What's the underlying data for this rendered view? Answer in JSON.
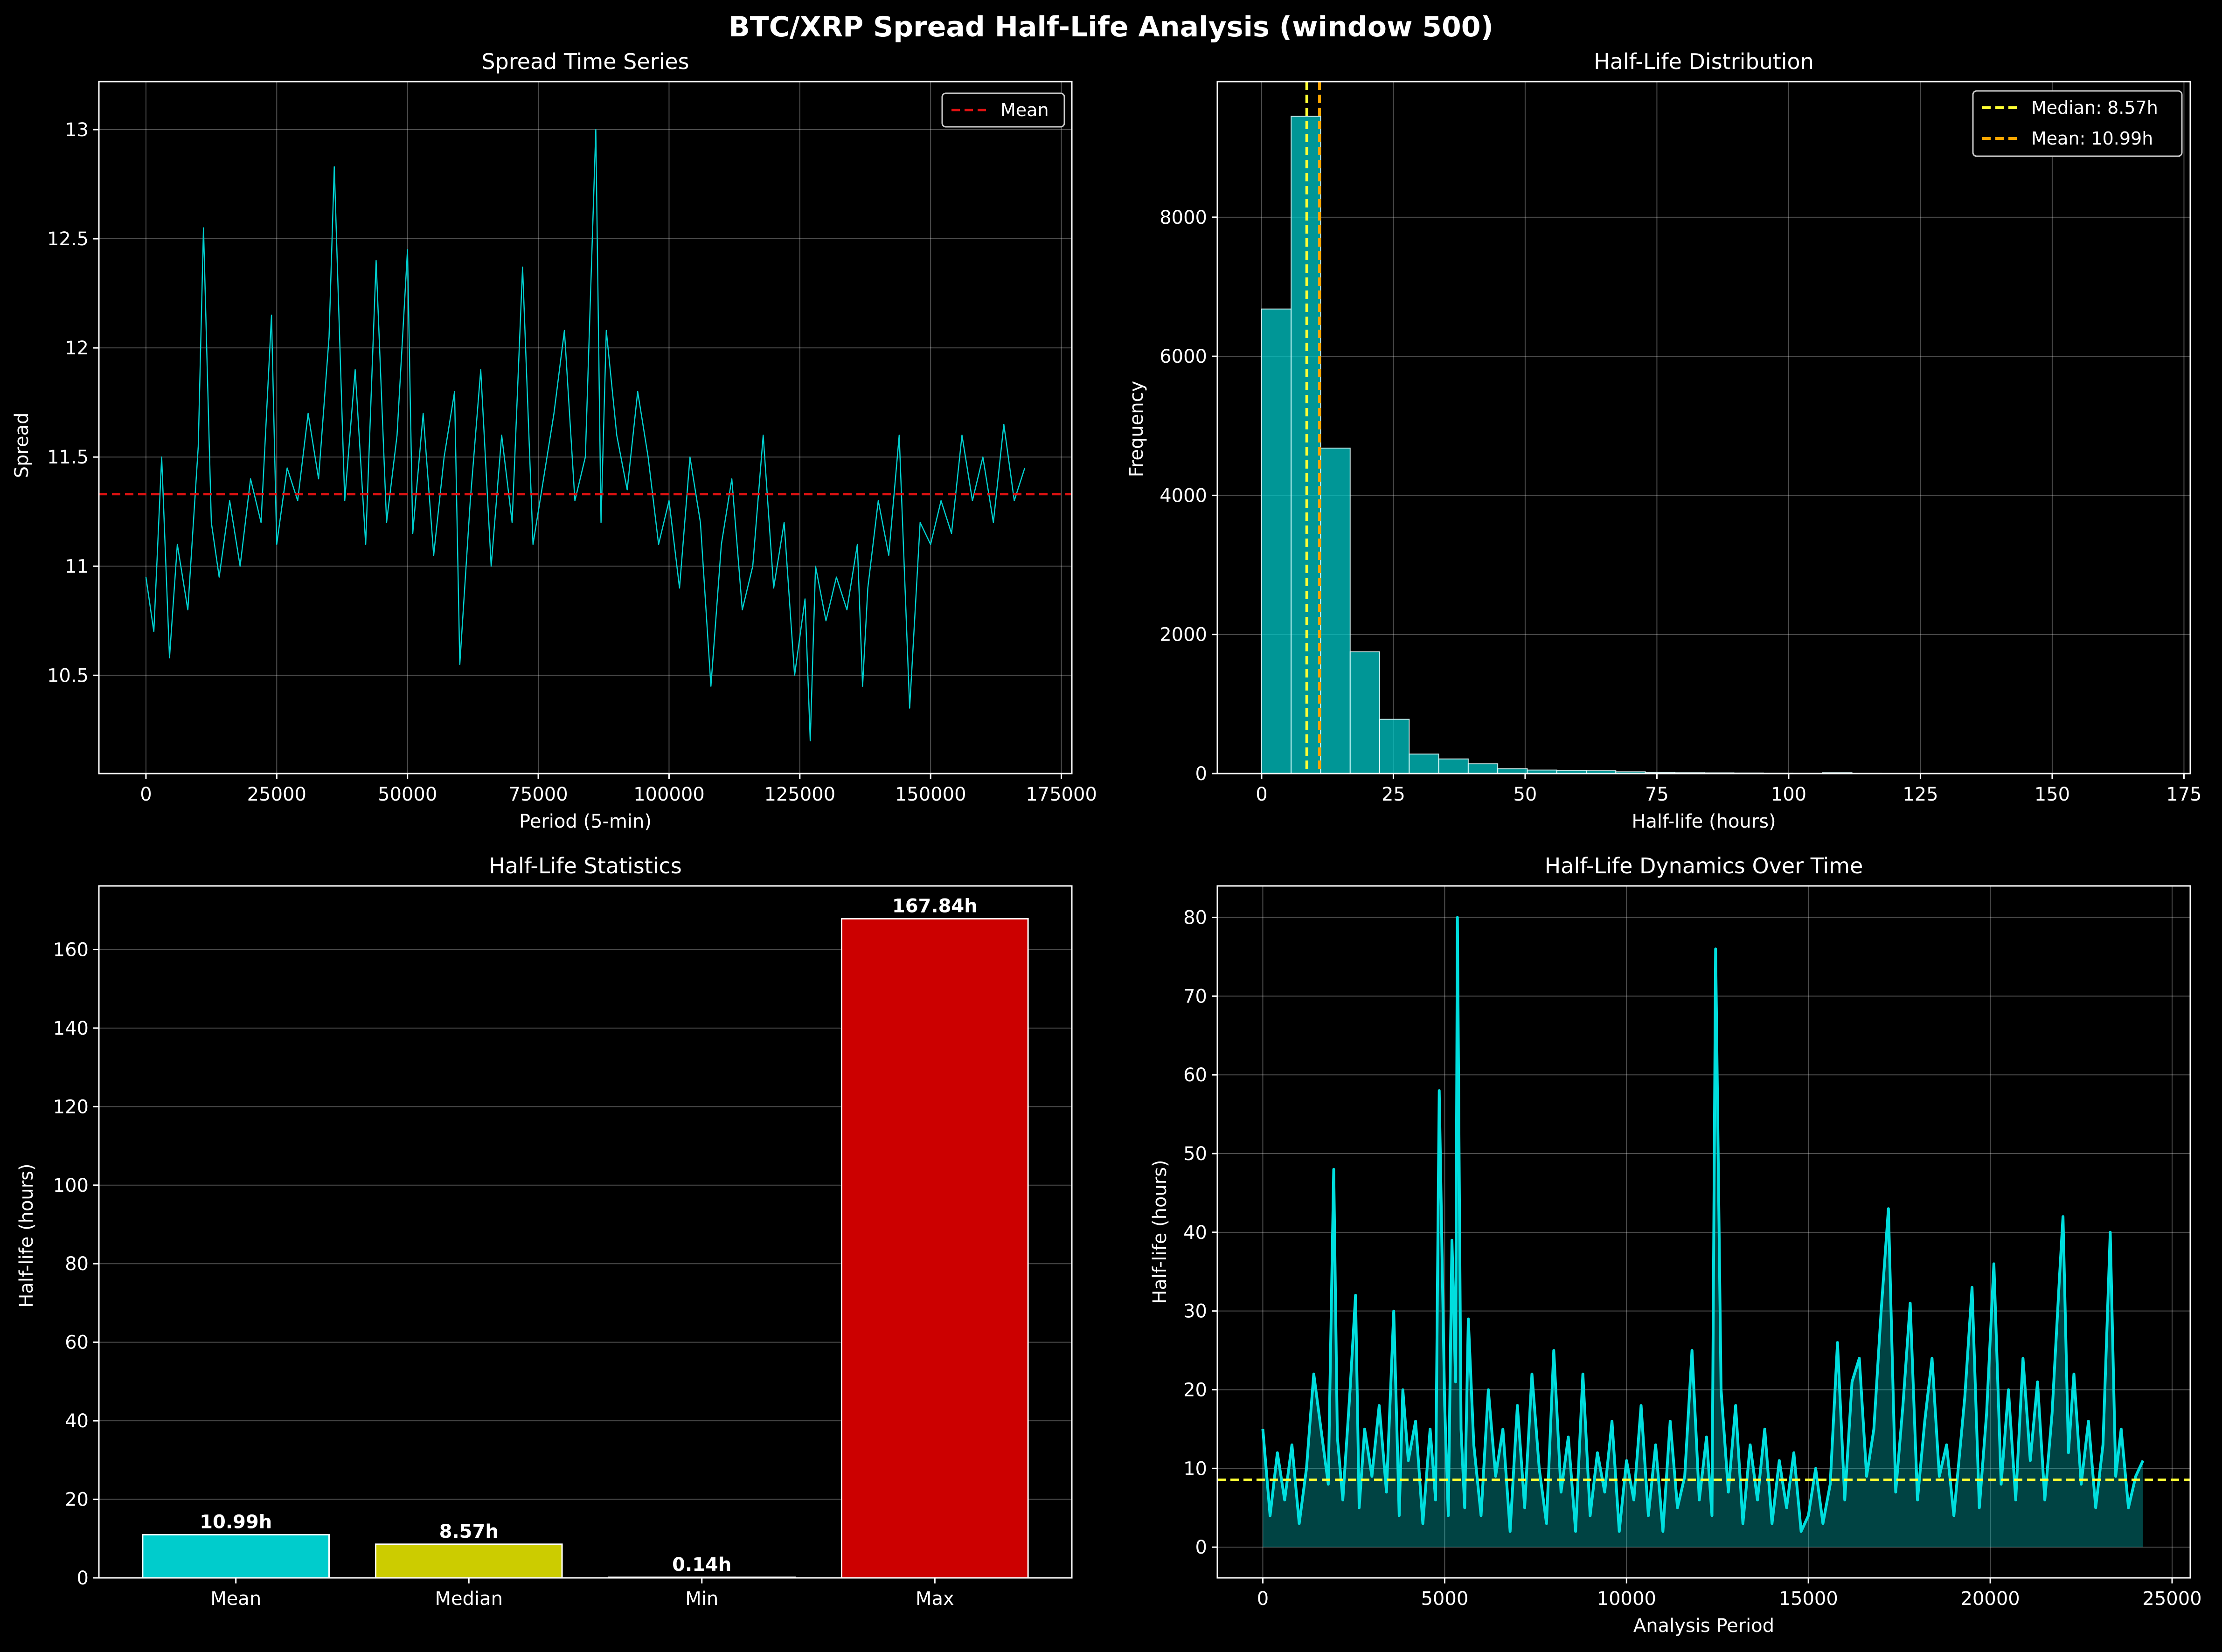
{
  "figure": {
    "title": "BTC/XRP Spread Half-Life Analysis (window 500)"
  },
  "chart_data": [
    {
      "id": "spread",
      "type": "line",
      "title": "Spread Time Series",
      "xlabel": "Period (5-min)",
      "ylabel": "Spread",
      "xlim": [
        -9000,
        177000
      ],
      "ylim": [
        10.05,
        13.22
      ],
      "xticks": [
        0,
        25000,
        50000,
        75000,
        100000,
        125000,
        150000,
        175000
      ],
      "yticks": [
        10.5,
        11.0,
        11.5,
        12.0,
        12.5,
        13.0
      ],
      "x_range": [
        0,
        168000
      ],
      "mean": 11.33,
      "grid": true,
      "legend": {
        "position": "top-right",
        "entries": [
          "Mean"
        ]
      },
      "series": [
        {
          "name": "Spread",
          "color": "#00d0d0",
          "x": [
            0,
            1500,
            3000,
            4500,
            6000,
            8000,
            10000,
            11000,
            12500,
            14000,
            16000,
            18000,
            20000,
            22000,
            24000,
            25000,
            27000,
            29000,
            31000,
            33000,
            35000,
            36000,
            38000,
            40000,
            42000,
            44000,
            46000,
            48000,
            50000,
            51000,
            53000,
            55000,
            57000,
            59000,
            60000,
            62000,
            64000,
            66000,
            68000,
            70000,
            72000,
            74000,
            76000,
            78000,
            80000,
            82000,
            84000,
            86000,
            87000,
            88000,
            90000,
            92000,
            94000,
            96000,
            98000,
            100000,
            102000,
            104000,
            106000,
            108000,
            110000,
            112000,
            114000,
            116000,
            118000,
            120000,
            122000,
            124000,
            126000,
            127000,
            128000,
            130000,
            132000,
            134000,
            136000,
            137000,
            138000,
            140000,
            142000,
            144000,
            146000,
            148000,
            150000,
            152000,
            154000,
            156000,
            158000,
            160000,
            162000,
            164000,
            166000,
            168000
          ],
          "y": [
            10.95,
            10.7,
            11.5,
            10.58,
            11.1,
            10.8,
            11.55,
            12.55,
            11.2,
            10.95,
            11.3,
            11.0,
            11.4,
            11.2,
            12.15,
            11.1,
            11.45,
            11.3,
            11.7,
            11.4,
            12.05,
            12.83,
            11.3,
            11.9,
            11.1,
            12.4,
            11.2,
            11.6,
            12.45,
            11.15,
            11.7,
            11.05,
            11.5,
            11.8,
            10.55,
            11.3,
            11.9,
            11.0,
            11.6,
            11.2,
            12.37,
            11.1,
            11.4,
            11.7,
            12.08,
            11.3,
            11.5,
            13.0,
            11.2,
            12.08,
            11.6,
            11.35,
            11.8,
            11.5,
            11.1,
            11.3,
            10.9,
            11.5,
            11.2,
            10.45,
            11.1,
            11.4,
            10.8,
            11.0,
            11.6,
            10.9,
            11.2,
            10.5,
            10.85,
            10.2,
            11.0,
            10.75,
            10.95,
            10.8,
            11.1,
            10.45,
            10.9,
            11.3,
            11.05,
            11.6,
            10.35,
            11.2,
            11.1,
            11.3,
            11.15,
            11.6,
            11.3,
            11.5,
            11.2,
            11.65,
            11.3,
            11.45
          ]
        }
      ]
    },
    {
      "id": "hist",
      "type": "bar",
      "title": "Half-Life Distribution",
      "xlabel": "Half-life (hours)",
      "ylabel": "Frequency",
      "xlim": [
        -8.4,
        176.2
      ],
      "ylim": [
        0,
        9950
      ],
      "xticks": [
        0,
        25,
        50,
        75,
        100,
        125,
        150,
        175
      ],
      "yticks": [
        0,
        2000,
        4000,
        6000,
        8000
      ],
      "bin_edges": [
        0,
        5.6,
        11.2,
        16.8,
        22.4,
        28.0,
        33.6,
        39.2,
        44.8,
        50.4,
        56.0,
        61.6,
        67.2,
        72.8,
        78.4,
        84.0,
        89.6,
        95.2,
        100.8,
        106.4,
        112.0,
        117.6,
        123.2,
        128.8,
        134.4,
        140.0,
        145.6,
        151.2,
        156.8,
        162.4,
        168.0
      ],
      "counts": [
        6680,
        9450,
        4680,
        1750,
        780,
        280,
        210,
        140,
        70,
        50,
        45,
        40,
        25,
        15,
        12,
        10,
        8,
        6,
        5,
        12,
        4,
        3,
        2,
        2,
        1,
        1,
        1,
        1,
        1,
        1
      ],
      "median": 8.57,
      "mean": 10.99,
      "grid": true,
      "legend": {
        "position": "top-right",
        "entries": [
          "Median: 8.57h",
          "Mean: 10.99h"
        ]
      }
    },
    {
      "id": "stats",
      "type": "bar",
      "title": "Half-Life Statistics",
      "xlabel": "",
      "ylabel": "Half-life (hours)",
      "ylim": [
        0,
        176.2
      ],
      "yticks": [
        0,
        20,
        40,
        60,
        80,
        100,
        120,
        140,
        160
      ],
      "categories": [
        "Mean",
        "Median",
        "Min",
        "Max"
      ],
      "values": [
        10.99,
        8.57,
        0.14,
        167.84
      ],
      "labels": [
        "10.99h",
        "8.57h",
        "0.14h",
        "167.84h"
      ],
      "colors": [
        "#00cccc",
        "#cccc00",
        "#00cc00",
        "#cc0000"
      ],
      "grid": true
    },
    {
      "id": "dynamics",
      "type": "area",
      "title": "Half-Life Dynamics Over Time",
      "xlabel": "Analysis Period",
      "ylabel": "Half-life (hours)",
      "xlim": [
        -1250,
        25500
      ],
      "ylim": [
        -3.9,
        84.0
      ],
      "xticks": [
        0,
        5000,
        10000,
        15000,
        20000,
        25000
      ],
      "yticks": [
        0,
        10,
        20,
        30,
        40,
        50,
        60,
        70,
        80
      ],
      "median": 8.57,
      "grid": true,
      "series": [
        {
          "name": "Half-life",
          "color": "#00dede",
          "x": [
            0,
            200,
            400,
            600,
            800,
            1000,
            1200,
            1400,
            1600,
            1800,
            1950,
            2050,
            2200,
            2400,
            2550,
            2650,
            2800,
            3000,
            3200,
            3400,
            3600,
            3750,
            3850,
            4000,
            4200,
            4400,
            4600,
            4750,
            4850,
            5000,
            5100,
            5200,
            5300,
            5350,
            5450,
            5550,
            5650,
            5800,
            6000,
            6200,
            6400,
            6600,
            6800,
            7000,
            7200,
            7400,
            7600,
            7800,
            8000,
            8200,
            8400,
            8600,
            8800,
            9000,
            9200,
            9400,
            9600,
            9800,
            10000,
            10200,
            10400,
            10600,
            10800,
            11000,
            11200,
            11400,
            11600,
            11800,
            12000,
            12200,
            12350,
            12450,
            12600,
            12800,
            13000,
            13200,
            13400,
            13600,
            13800,
            14000,
            14200,
            14400,
            14600,
            14800,
            15000,
            15200,
            15400,
            15600,
            15800,
            16000,
            16200,
            16400,
            16600,
            16800,
            17000,
            17200,
            17400,
            17600,
            17800,
            18000,
            18200,
            18400,
            18600,
            18800,
            19000,
            19300,
            19500,
            19700,
            19900,
            20100,
            20300,
            20500,
            20700,
            20900,
            21100,
            21300,
            21500,
            21700,
            21900,
            22000,
            22150,
            22300,
            22500,
            22700,
            22900,
            23100,
            23300,
            23450,
            23600,
            23800,
            24000,
            24200
          ],
          "y": [
            15,
            4,
            12,
            6,
            13,
            3,
            10,
            22,
            15,
            8,
            48,
            14,
            6,
            20,
            32,
            5,
            15,
            9,
            18,
            7,
            30,
            4,
            20,
            11,
            16,
            3,
            15,
            6,
            58,
            18,
            4,
            39,
            21,
            80,
            15,
            5,
            29,
            13,
            4,
            20,
            9,
            15,
            2,
            18,
            5,
            22,
            10,
            3,
            25,
            7,
            14,
            2,
            22,
            4,
            12,
            7,
            16,
            2,
            11,
            6,
            18,
            4,
            13,
            2,
            16,
            5,
            9,
            25,
            6,
            14,
            4,
            76,
            20,
            7,
            18,
            3,
            13,
            6,
            15,
            3,
            11,
            5,
            12,
            2,
            4,
            10,
            3,
            8,
            26,
            6,
            21,
            24,
            9,
            15,
            30,
            43,
            7,
            18,
            31,
            6,
            16,
            24,
            9,
            13,
            4,
            19,
            33,
            5,
            17,
            36,
            8,
            20,
            6,
            24,
            11,
            21,
            6,
            17,
            34,
            42,
            12,
            22,
            8,
            16,
            5,
            13,
            40,
            9,
            15,
            5,
            9,
            11
          ]
        }
      ]
    }
  ]
}
